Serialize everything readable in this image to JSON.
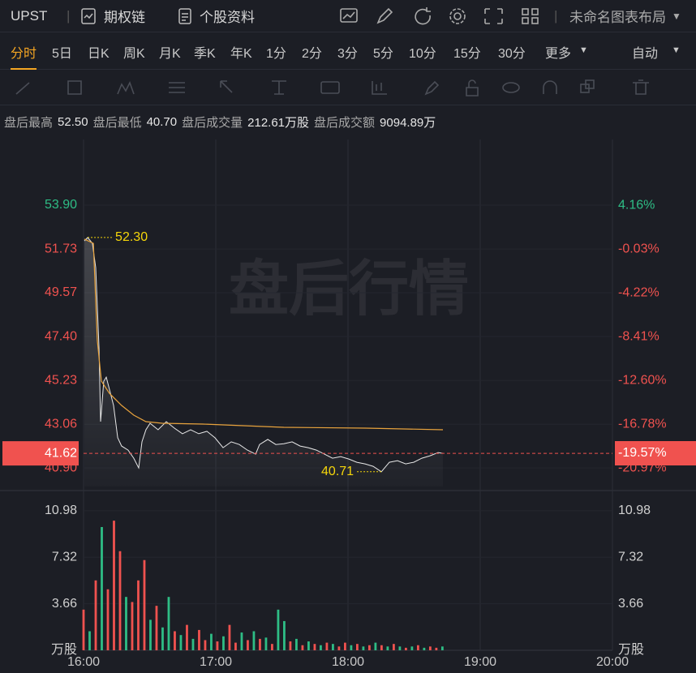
{
  "header": {
    "symbol": "UPST",
    "tabs": [
      "期权链",
      "个股资料"
    ],
    "layout_name": "未命名图表布局"
  },
  "periods": {
    "items": [
      "分时",
      "5日",
      "日K",
      "周K",
      "月K",
      "季K",
      "年K",
      "1分",
      "2分",
      "3分",
      "5分",
      "10分",
      "15分",
      "30分",
      "更多"
    ],
    "active": 0,
    "mode": "自动"
  },
  "stats": [
    {
      "label": "盘后最高",
      "value": "52.50"
    },
    {
      "label": "盘后最低",
      "value": "40.70"
    },
    {
      "label": "盘后成交量",
      "value": "212.61万股"
    },
    {
      "label": "盘后成交额",
      "value": "9094.89万"
    }
  ],
  "watermark": "盘后行情",
  "chart_data": [
    {
      "type": "line",
      "xlim": [
        16,
        20
      ],
      "xticks": [
        {
          "value": 16,
          "label": "16:00"
        },
        {
          "value": 17,
          "label": "17:00"
        },
        {
          "value": 18,
          "label": "18:00"
        },
        {
          "value": 19,
          "label": "19:00"
        },
        {
          "value": 20,
          "label": "20:00"
        }
      ],
      "ylim": [
        39.98,
        57.15
      ],
      "yticks": [
        {
          "value": 53.9,
          "label": "53.90"
        },
        51.73,
        49.57,
        {
          "value": 47.4,
          "label": "47.40"
        },
        45.23,
        43.06,
        {
          "value": 40.9,
          "label": "40.90"
        }
      ],
      "y2lim": [
        -22.75,
        10.45
      ],
      "y2ticks": [
        {
          "value": 4.16,
          "label": "4.16%"
        },
        {
          "value": -0.03,
          "label": "-0.03%"
        },
        {
          "value": -4.22,
          "label": "-4.22%"
        },
        {
          "value": -8.41,
          "label": "-8.41%"
        },
        {
          "value": -12.6,
          "label": "-12.60%"
        },
        {
          "value": -16.78,
          "label": "-16.78%"
        },
        {
          "value": -20.97,
          "label": "-20.97%"
        }
      ],
      "up_color": "#2ebd85",
      "down_color": "#f0524f",
      "x": [
        16.006,
        16.031,
        16.067,
        16.092,
        16.117,
        16.129,
        16.153,
        16.172,
        16.196,
        16.227,
        16.258,
        16.288,
        16.337,
        16.38,
        16.417,
        16.442,
        16.472,
        16.503,
        16.564,
        16.626,
        16.687,
        16.748,
        16.81,
        16.871,
        16.933,
        16.994,
        17.055,
        17.117,
        17.178,
        17.239,
        17.301,
        17.331,
        17.393,
        17.454,
        17.515,
        17.577,
        17.638,
        17.699,
        17.761,
        17.822,
        17.883,
        17.945,
        18.006,
        18.067,
        18.129,
        18.19,
        18.252,
        18.313,
        18.374,
        18.436,
        18.497,
        18.558,
        18.62,
        18.681,
        18.718
      ],
      "series": [
        {
          "color": "#e8e8e8",
          "values": [
            52.13,
            52.3,
            52.01,
            50.81,
            46.8,
            43.19,
            45.19,
            45.39,
            44.79,
            43.99,
            42.39,
            41.98,
            41.78,
            41.38,
            40.9,
            42.19,
            42.79,
            43.11,
            42.79,
            43.19,
            42.87,
            42.59,
            42.79,
            42.59,
            42.71,
            42.39,
            41.9,
            42.19,
            42.06,
            41.78,
            41.58,
            42.06,
            42.31,
            42.06,
            42.1,
            42.19,
            41.98,
            41.9,
            41.78,
            41.58,
            41.38,
            41.46,
            41.34,
            41.18,
            41.1,
            40.98,
            40.71,
            41.18,
            41.26,
            41.1,
            41.18,
            41.38,
            41.5,
            41.66,
            41.62
          ]
        }
      ],
      "avg_line": {
        "color": "#e8a33d",
        "x": [
          16.006,
          16.074,
          16.104,
          16.135,
          16.196,
          16.288,
          16.38,
          16.472,
          16.595,
          16.902,
          17.209,
          17.515,
          18.129,
          18.718
        ],
        "values": [
          52.22,
          52.01,
          47.19,
          45.19,
          44.59,
          43.99,
          43.51,
          43.19,
          43.11,
          43.07,
          42.99,
          42.91,
          42.87,
          42.79
        ]
      },
      "annotations": [
        {
          "x": 16.031,
          "value": 52.3,
          "label": "52.30",
          "color": "#f5d60a"
        },
        {
          "x": 18.252,
          "value": 40.71,
          "label": "40.71",
          "color": "#f5d60a"
        }
      ],
      "last": {
        "value": 41.62,
        "label": "41.62",
        "change": {
          "value": -19.57,
          "label": "-19.57%"
        },
        "color": "#f0524f"
      }
    },
    {
      "type": "bar",
      "ylim": [
        0,
        12.57
      ],
      "yticks": [
        {
          "value": 0,
          "label": "万股"
        },
        3.66,
        7.32,
        10.98
      ],
      "x": [
        16.0,
        16.046,
        16.092,
        16.138,
        16.184,
        16.23,
        16.276,
        16.322,
        16.368,
        16.414,
        16.46,
        16.506,
        16.552,
        16.598,
        16.644,
        16.69,
        16.736,
        16.782,
        16.828,
        16.874,
        16.92,
        16.966,
        17.012,
        17.058,
        17.104,
        17.15,
        17.196,
        17.242,
        17.288,
        17.334,
        17.38,
        17.426,
        17.472,
        17.518,
        17.564,
        17.61,
        17.656,
        17.702,
        17.748,
        17.794,
        17.84,
        17.886,
        17.932,
        17.978,
        18.024,
        18.07,
        18.116,
        18.162,
        18.208,
        18.254,
        18.3,
        18.346,
        18.392,
        18.438,
        18.484,
        18.53,
        18.576,
        18.622,
        18.668,
        18.714
      ],
      "values": [
        3.2,
        1.5,
        5.5,
        9.7,
        4.8,
        10.2,
        7.8,
        4.2,
        3.8,
        5.5,
        7.1,
        2.4,
        3.5,
        1.8,
        4.2,
        1.5,
        1.2,
        2.0,
        0.9,
        1.6,
        0.8,
        1.3,
        0.7,
        1.1,
        2.0,
        0.6,
        1.4,
        0.8,
        1.5,
        0.9,
        1.0,
        0.5,
        3.2,
        2.3,
        0.7,
        0.9,
        0.4,
        0.7,
        0.5,
        0.4,
        0.6,
        0.5,
        0.3,
        0.6,
        0.4,
        0.5,
        0.3,
        0.4,
        0.6,
        0.4,
        0.3,
        0.5,
        0.3,
        0.2,
        0.3,
        0.4,
        0.2,
        0.3,
        0.2,
        0.3
      ],
      "colors": [
        "#f0524f",
        "#2ebd85",
        "#f0524f",
        "#2ebd85",
        "#f0524f",
        "#f0524f",
        "#f0524f",
        "#2ebd85",
        "#f0524f",
        "#f0524f",
        "#f0524f",
        "#2ebd85",
        "#f0524f",
        "#2ebd85",
        "#2ebd85",
        "#f0524f",
        "#2ebd85",
        "#f0524f",
        "#2ebd85",
        "#f0524f",
        "#f0524f",
        "#2ebd85",
        "#f0524f",
        "#2ebd85",
        "#f0524f",
        "#f0524f",
        "#2ebd85",
        "#f0524f",
        "#2ebd85",
        "#f0524f",
        "#2ebd85",
        "#f0524f",
        "#2ebd85",
        "#2ebd85",
        "#f0524f",
        "#2ebd85",
        "#f0524f",
        "#2ebd85",
        "#f0524f",
        "#2ebd85",
        "#f0524f",
        "#2ebd85",
        "#f0524f",
        "#f0524f",
        "#2ebd85",
        "#f0524f",
        "#2ebd85",
        "#f0524f",
        "#2ebd85",
        "#f0524f",
        "#2ebd85",
        "#f0524f",
        "#2ebd85",
        "#f0524f",
        "#2ebd85",
        "#f0524f",
        "#2ebd85",
        "#f0524f",
        "#f0524f",
        "#2ebd85"
      ]
    }
  ]
}
